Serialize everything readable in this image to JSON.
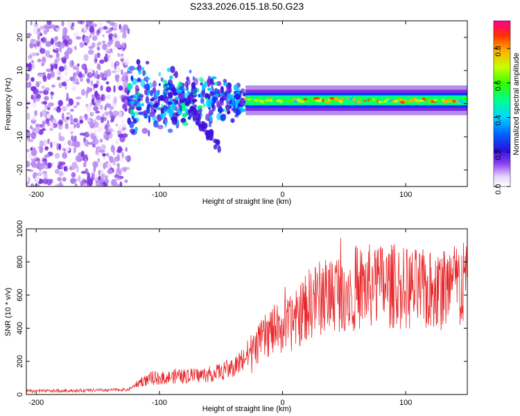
{
  "title": "S233.2026.015.18.50.G23",
  "chart_data": [
    {
      "type": "heatmap",
      "title": "S233.2026.015.18.50.G23",
      "xlabel": "Height of straight line (km)",
      "ylabel": "Frequency (Hz)",
      "xlim": [
        -208,
        150
      ],
      "ylim": [
        -25,
        25
      ],
      "x_ticks": [
        -200,
        -100,
        0,
        100
      ],
      "y_ticks": [
        -20,
        -10,
        0,
        10,
        20
      ],
      "x_tick_labels": [
        "-200",
        "-100",
        "0",
        "100"
      ],
      "y_tick_labels": [
        "-20",
        "-10",
        "0",
        "10",
        "20"
      ],
      "colorbar": {
        "label": "Normalized spectral amplitude",
        "range": [
          0,
          0.96
        ],
        "ticks": [
          0.0,
          0.2,
          0.4,
          0.6,
          0.8
        ],
        "tick_labels": [
          "0.0",
          "0.2",
          "0.4",
          "0.6",
          "0.8"
        ],
        "colors": [
          "#f4e4ff",
          "#b98cf0",
          "#7a2fe0",
          "#3a10d8",
          "#0033ff",
          "#00c8ff",
          "#00ff80",
          "#40ff00",
          "#c8ff00",
          "#ffb000",
          "#ff4000",
          "#ff0080"
        ]
      },
      "regions": [
        {
          "name": "noise",
          "x": [
            -208,
            -125
          ],
          "f": [
            -25,
            25
          ],
          "amplitude": 0.12
        },
        {
          "name": "scattered",
          "x": [
            -125,
            -30
          ],
          "f": [
            -15,
            12
          ],
          "amplitude": 0.3
        },
        {
          "name": "tone",
          "x": [
            -30,
            150
          ],
          "f_center": 1.0,
          "amplitude": 0.85
        }
      ]
    },
    {
      "type": "line",
      "xlabel": "Height of straight line (km)",
      "ylabel": "SNR (10 * v/v)",
      "xlim": [
        -208,
        150
      ],
      "ylim": [
        0,
        1000
      ],
      "x_ticks": [
        -200,
        -100,
        0,
        100
      ],
      "y_ticks": [
        0,
        200,
        400,
        600,
        800,
        1000
      ],
      "x_tick_labels": [
        "-200",
        "-100",
        "0",
        "100"
      ],
      "y_tick_labels": [
        "0",
        "200",
        "400",
        "600",
        "800",
        "1000"
      ],
      "color": "#e8272a",
      "trend_x": [
        -208,
        -150,
        -125,
        -115,
        -100,
        -80,
        -60,
        -40,
        -25,
        -10,
        0,
        10,
        20,
        40,
        60,
        80,
        100,
        120,
        150
      ],
      "trend_y": [
        20,
        25,
        30,
        80,
        100,
        110,
        120,
        160,
        260,
        380,
        400,
        440,
        540,
        620,
        640,
        660,
        640,
        620,
        680
      ]
    }
  ]
}
